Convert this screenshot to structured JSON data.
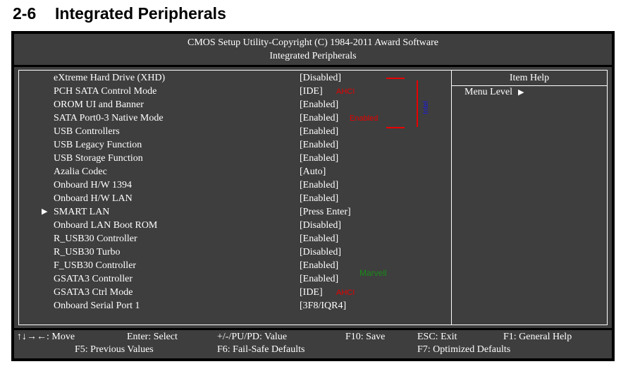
{
  "page_heading": {
    "section_number": "2-6",
    "title": "Integrated Peripherals"
  },
  "bios_header": {
    "line1": "CMOS Setup Utility-Copyright (C) 1984-2011 Award Software",
    "line2": "Integrated Peripherals"
  },
  "settings": [
    {
      "name": "eXtreme Hard Drive (XHD)",
      "value": "[Disabled]"
    },
    {
      "name": "PCH SATA Control Mode",
      "value": "[IDE]"
    },
    {
      "name": "OROM UI and Banner",
      "value": "[Enabled]"
    },
    {
      "name": "SATA Port0-3 Native Mode",
      "value": "[Enabled]"
    },
    {
      "name": "USB Controllers",
      "value": "[Enabled]"
    },
    {
      "name": "USB Legacy Function",
      "value": "[Enabled]"
    },
    {
      "name": "USB Storage Function",
      "value": "[Enabled]"
    },
    {
      "name": "Azalia Codec",
      "value": "[Auto]"
    },
    {
      "name": "Onboard H/W 1394",
      "value": "[Enabled]"
    },
    {
      "name": "Onboard H/W LAN",
      "value": "[Enabled]"
    },
    {
      "name": "SMART LAN",
      "value": "[Press Enter]",
      "submenu_marker": "▶"
    },
    {
      "name": "Onboard LAN Boot ROM",
      "value": "[Disabled]"
    },
    {
      "name": "R_USB30 Controller",
      "value": "[Enabled]"
    },
    {
      "name": "R_USB30 Turbo",
      "value": "[Disabled]"
    },
    {
      "name": "F_USB30 Controller",
      "value": "[Enabled]"
    },
    {
      "name": "GSATA3 Controller",
      "value": "[Enabled]"
    },
    {
      "name": "GSATA3 Ctrl Mode",
      "value": "[IDE]"
    },
    {
      "name": "Onboard Serial Port 1",
      "value": "[3F8/IQR4]"
    }
  ],
  "item_help": {
    "title": "Item Help",
    "menu_level": "Menu Level",
    "menu_level_marker": "▶"
  },
  "annotations": {
    "pch_sata_mode": "AHCI",
    "sata_native_mode": "Enabled",
    "intel_group": "Intel",
    "marvell_group": "Marvell",
    "gsata3_ctrl_mode": "AHCI",
    "red_color": "#e80000",
    "green_color": "#1a8a1a",
    "blue_color": "#1a1ae0"
  },
  "footer": {
    "move": "↑↓→←: Move",
    "enter": "Enter: Select",
    "value": "+/-/PU/PD: Value",
    "save": "F10: Save",
    "esc": "ESC: Exit",
    "help": "F1: General Help",
    "prev": "F5: Previous Values",
    "failsafe": "F6: Fail-Safe Defaults",
    "optimized": "F7: Optimized Defaults"
  }
}
